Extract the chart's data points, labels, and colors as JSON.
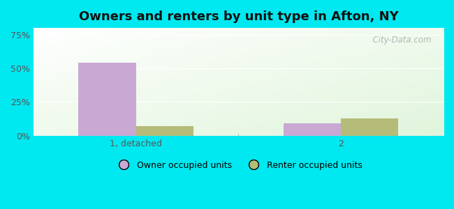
{
  "title": "Owners and renters by unit type in Afton, NY",
  "categories": [
    "1, detached",
    "2"
  ],
  "owner_values": [
    54.0,
    9.0
  ],
  "renter_values": [
    7.0,
    13.0
  ],
  "owner_color": "#c9a8d4",
  "renter_color": "#b5bc7a",
  "yticks": [
    0,
    25,
    50,
    75
  ],
  "ytick_labels": [
    "0%",
    "25%",
    "50%",
    "75%"
  ],
  "ylim": [
    0,
    80
  ],
  "bar_width": 0.28,
  "background_outer": "#00e8f0",
  "legend_labels": [
    "Owner occupied units",
    "Renter occupied units"
  ],
  "watermark": "  City-Data.com",
  "title_fontsize": 13,
  "tick_fontsize": 9,
  "legend_fontsize": 9,
  "group_positions": [
    0.25,
    0.75
  ]
}
